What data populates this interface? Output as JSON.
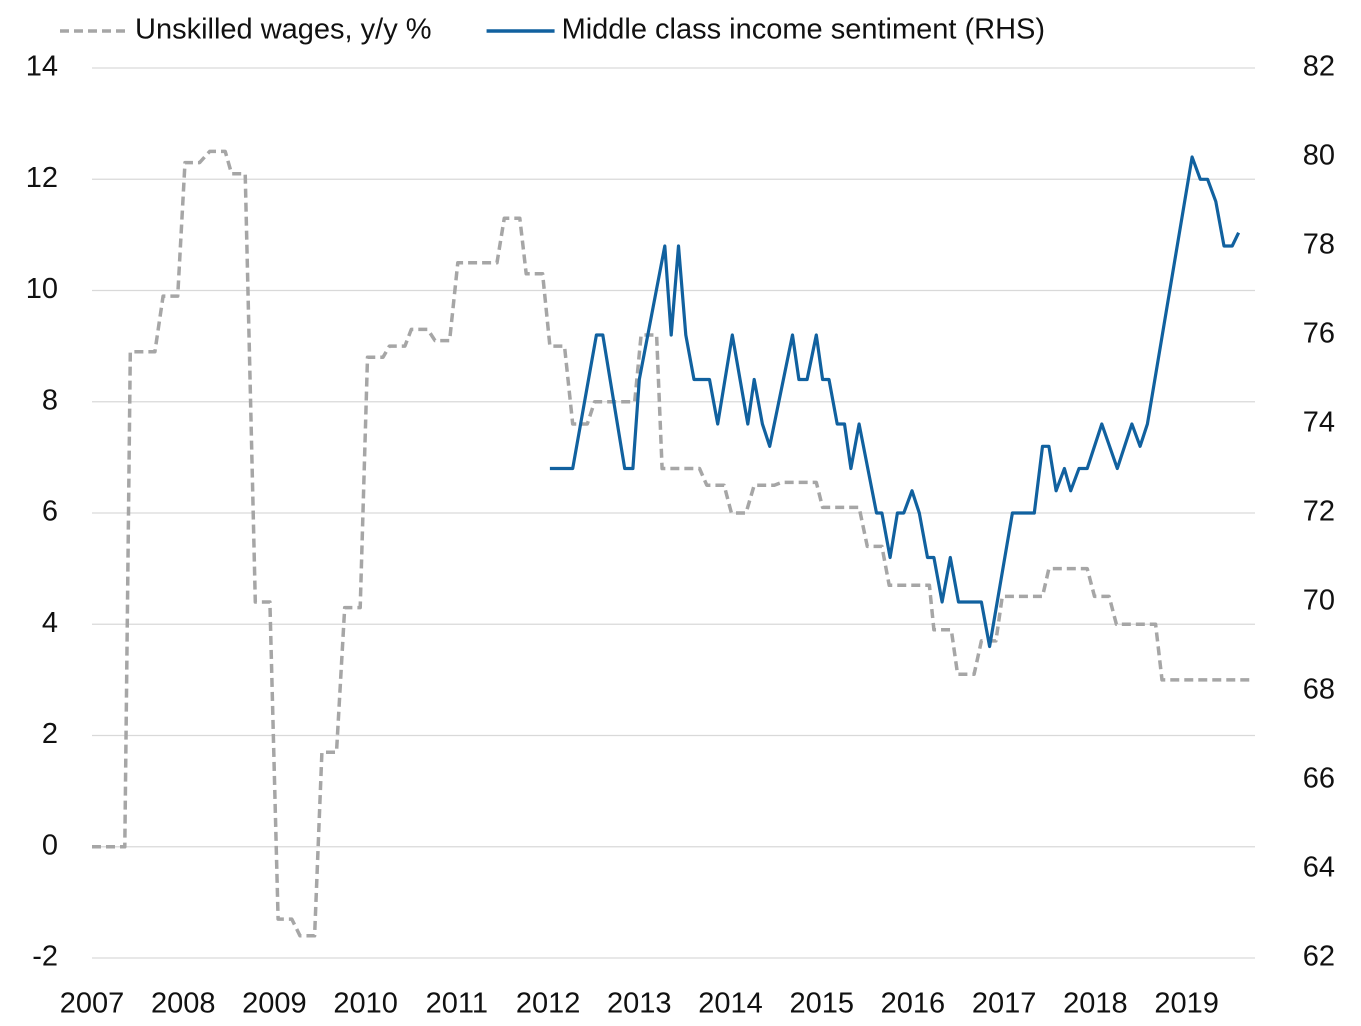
{
  "chart_data": {
    "type": "line",
    "xlim": [
      2007,
      2019.75
    ],
    "xticks": [
      2007,
      2008,
      2009,
      2010,
      2011,
      2012,
      2013,
      2014,
      2015,
      2016,
      2017,
      2018,
      2019
    ],
    "ylim": [
      -2,
      14
    ],
    "yticks": [
      -2,
      0,
      2,
      4,
      6,
      8,
      10,
      12,
      14
    ],
    "y2lim": [
      62,
      82
    ],
    "y2ticks": [
      62,
      64,
      66,
      68,
      70,
      72,
      74,
      76,
      78,
      80,
      82
    ],
    "grid": true,
    "legend": "top",
    "series": [
      {
        "name": "Unskilled wages, y/y %",
        "color": "#a6a6a6",
        "style": "dashed",
        "axis": "y",
        "x": [
          2007.0,
          2007.36,
          2007.42,
          2007.69,
          2007.78,
          2007.94,
          2008.02,
          2008.18,
          2008.29,
          2008.46,
          2008.53,
          2008.68,
          2008.79,
          2008.95,
          2009.04,
          2009.19,
          2009.28,
          2009.44,
          2009.52,
          2009.68,
          2009.77,
          2009.94,
          2010.02,
          2010.19,
          2010.26,
          2010.43,
          2010.5,
          2010.68,
          2010.76,
          2010.92,
          2011.01,
          2011.44,
          2011.52,
          2011.69,
          2011.76,
          2011.94,
          2012.02,
          2012.18,
          2012.27,
          2012.43,
          2012.51,
          2012.95,
          2013.02,
          2013.19,
          2013.25,
          2013.66,
          2013.74,
          2013.93,
          2014.01,
          2014.17,
          2014.26,
          2014.48,
          2014.56,
          2014.94,
          2015.01,
          2015.41,
          2015.5,
          2015.66,
          2015.74,
          2016.18,
          2016.23,
          2016.42,
          2016.49,
          2016.67,
          2016.75,
          2016.91,
          2016.98,
          2017.42,
          2017.49,
          2017.91,
          2017.99,
          2018.15,
          2018.23,
          2018.66,
          2018.73,
          2019.74
        ],
        "values": [
          0,
          0,
          8.9,
          8.9,
          9.9,
          9.9,
          12.3,
          12.3,
          12.5,
          12.5,
          12.1,
          12.1,
          4.4,
          4.4,
          -1.3,
          -1.3,
          -1.6,
          -1.6,
          1.7,
          1.7,
          4.3,
          4.3,
          8.8,
          8.8,
          9.0,
          9.0,
          9.3,
          9.3,
          9.1,
          9.1,
          10.5,
          10.5,
          11.3,
          11.3,
          10.3,
          10.3,
          9.0,
          9.0,
          7.6,
          7.6,
          8.0,
          8.0,
          9.2,
          9.2,
          6.8,
          6.8,
          6.5,
          6.5,
          6.0,
          6.0,
          6.5,
          6.5,
          6.55,
          6.55,
          6.1,
          6.1,
          5.4,
          5.4,
          4.7,
          4.7,
          3.9,
          3.9,
          3.1,
          3.1,
          3.7,
          3.7,
          4.5,
          4.5,
          5.0,
          5.0,
          4.5,
          4.5,
          4.0,
          4.0,
          3.0,
          3.0
        ]
      },
      {
        "name": "Middle class income sentiment (RHS)",
        "color": "#11619f",
        "style": "solid",
        "axis": "y2",
        "x": [
          2012.02,
          2012.27,
          2012.53,
          2012.6,
          2012.84,
          2012.93,
          2013.0,
          2013.28,
          2013.35,
          2013.43,
          2013.51,
          2013.6,
          2013.77,
          2013.86,
          2014.02,
          2014.19,
          2014.26,
          2014.35,
          2014.43,
          2014.68,
          2014.75,
          2014.84,
          2014.94,
          2015.01,
          2015.08,
          2015.17,
          2015.25,
          2015.32,
          2015.41,
          2015.6,
          2015.66,
          2015.75,
          2015.83,
          2015.9,
          2015.99,
          2016.07,
          2016.16,
          2016.23,
          2016.32,
          2016.41,
          2016.5,
          2016.75,
          2016.84,
          2017.09,
          2017.33,
          2017.42,
          2017.49,
          2017.57,
          2017.66,
          2017.73,
          2017.82,
          2017.91,
          2018.07,
          2018.24,
          2018.4,
          2018.49,
          2018.57,
          2019.06,
          2019.15,
          2019.23,
          2019.32,
          2019.41,
          2019.5,
          2019.57
        ],
        "values": [
          73,
          73,
          76,
          76,
          73,
          73,
          75,
          78,
          76,
          78,
          76,
          75,
          75,
          74,
          76,
          74,
          75,
          74,
          73.5,
          76,
          75,
          75,
          76,
          75,
          75,
          74,
          74,
          73,
          74,
          72,
          72,
          71,
          72,
          72,
          72.5,
          72,
          71,
          71,
          70,
          71,
          70,
          70,
          69,
          72,
          72,
          73.5,
          73.5,
          72.5,
          73,
          72.5,
          73,
          73,
          74,
          73,
          74,
          73.5,
          74,
          80,
          79.5,
          79.5,
          79,
          78,
          78,
          78.3
        ]
      }
    ]
  }
}
